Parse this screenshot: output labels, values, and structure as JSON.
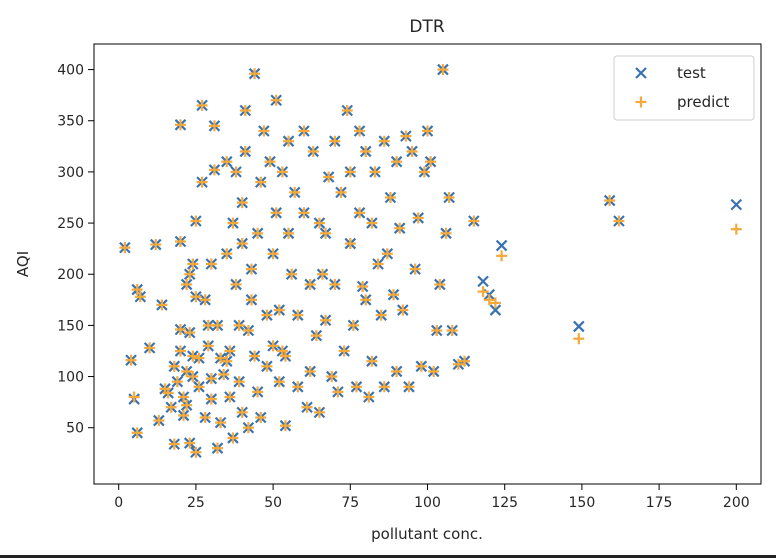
{
  "chart_data": {
    "type": "scatter",
    "title": "DTR",
    "xlabel": "pollutant conc.",
    "ylabel": "AQI",
    "xlim": [
      -8,
      208
    ],
    "ylim": [
      -5,
      425
    ],
    "xticks": [
      0,
      25,
      50,
      75,
      100,
      125,
      150,
      175,
      200
    ],
    "yticks": [
      50,
      100,
      150,
      200,
      250,
      300,
      350,
      400
    ],
    "grid": false,
    "legend_position": "top-right",
    "series": [
      {
        "name": "test",
        "marker": "x",
        "color": "#3a72b0",
        "points": [
          [
            2,
            226
          ],
          [
            4,
            116
          ],
          [
            5,
            78
          ],
          [
            6,
            45
          ],
          [
            6,
            185
          ],
          [
            7,
            178
          ],
          [
            10,
            128
          ],
          [
            12,
            229
          ],
          [
            13,
            57
          ],
          [
            14,
            170
          ],
          [
            15,
            88
          ],
          [
            16,
            84
          ],
          [
            17,
            70
          ],
          [
            18,
            34
          ],
          [
            18,
            110
          ],
          [
            19,
            95
          ],
          [
            20,
            125
          ],
          [
            20,
            146
          ],
          [
            20,
            346
          ],
          [
            20,
            232
          ],
          [
            21,
            80
          ],
          [
            21,
            62
          ],
          [
            22,
            190
          ],
          [
            22,
            105
          ],
          [
            22,
            72
          ],
          [
            23,
            35
          ],
          [
            23,
            200
          ],
          [
            23,
            143
          ],
          [
            24,
            120
          ],
          [
            24,
            100
          ],
          [
            24,
            210
          ],
          [
            25,
            26
          ],
          [
            25,
            178
          ],
          [
            25,
            252
          ],
          [
            26,
            90
          ],
          [
            26,
            118
          ],
          [
            27,
            365
          ],
          [
            27,
            290
          ],
          [
            28,
            60
          ],
          [
            28,
            175
          ],
          [
            29,
            130
          ],
          [
            29,
            150
          ],
          [
            30,
            78
          ],
          [
            30,
            98
          ],
          [
            30,
            210
          ],
          [
            31,
            345
          ],
          [
            31,
            302
          ],
          [
            32,
            30
          ],
          [
            32,
            150
          ],
          [
            33,
            118
          ],
          [
            33,
            55
          ],
          [
            34,
            102
          ],
          [
            35,
            115
          ],
          [
            35,
            220
          ],
          [
            35,
            310
          ],
          [
            36,
            80
          ],
          [
            36,
            125
          ],
          [
            37,
            250
          ],
          [
            37,
            40
          ],
          [
            38,
            190
          ],
          [
            38,
            300
          ],
          [
            39,
            150
          ],
          [
            39,
            95
          ],
          [
            40,
            65
          ],
          [
            40,
            270
          ],
          [
            40,
            230
          ],
          [
            41,
            360
          ],
          [
            41,
            320
          ],
          [
            42,
            145
          ],
          [
            42,
            50
          ],
          [
            43,
            175
          ],
          [
            43,
            205
          ],
          [
            44,
            396
          ],
          [
            44,
            120
          ],
          [
            45,
            240
          ],
          [
            45,
            85
          ],
          [
            46,
            290
          ],
          [
            46,
            60
          ],
          [
            47,
            340
          ],
          [
            48,
            160
          ],
          [
            48,
            110
          ],
          [
            49,
            310
          ],
          [
            50,
            220
          ],
          [
            50,
            130
          ],
          [
            51,
            370
          ],
          [
            51,
            260
          ],
          [
            52,
            95
          ],
          [
            52,
            165
          ],
          [
            53,
            300
          ],
          [
            53,
            125
          ],
          [
            54,
            120
          ],
          [
            54,
            52
          ],
          [
            55,
            240
          ],
          [
            55,
            330
          ],
          [
            56,
            200
          ],
          [
            57,
            280
          ],
          [
            58,
            160
          ],
          [
            58,
            90
          ],
          [
            60,
            340
          ],
          [
            60,
            260
          ],
          [
            61,
            70
          ],
          [
            62,
            190
          ],
          [
            62,
            105
          ],
          [
            63,
            320
          ],
          [
            64,
            140
          ],
          [
            65,
            250
          ],
          [
            65,
            65
          ],
          [
            66,
            200
          ],
          [
            67,
            155
          ],
          [
            67,
            240
          ],
          [
            68,
            295
          ],
          [
            69,
            100
          ],
          [
            70,
            330
          ],
          [
            70,
            190
          ],
          [
            71,
            85
          ],
          [
            72,
            280
          ],
          [
            73,
            125
          ],
          [
            74,
            360
          ],
          [
            75,
            300
          ],
          [
            75,
            230
          ],
          [
            76,
            150
          ],
          [
            77,
            90
          ],
          [
            78,
            340
          ],
          [
            78,
            260
          ],
          [
            79,
            188
          ],
          [
            80,
            320
          ],
          [
            80,
            175
          ],
          [
            81,
            80
          ],
          [
            82,
            250
          ],
          [
            82,
            115
          ],
          [
            83,
            300
          ],
          [
            84,
            210
          ],
          [
            85,
            160
          ],
          [
            86,
            330
          ],
          [
            86,
            90
          ],
          [
            87,
            220
          ],
          [
            88,
            275
          ],
          [
            89,
            180
          ],
          [
            90,
            310
          ],
          [
            90,
            105
          ],
          [
            91,
            245
          ],
          [
            92,
            165
          ],
          [
            93,
            335
          ],
          [
            94,
            90
          ],
          [
            95,
            320
          ],
          [
            96,
            205
          ],
          [
            97,
            255
          ],
          [
            98,
            110
          ],
          [
            99,
            300
          ],
          [
            100,
            340
          ],
          [
            101,
            310
          ],
          [
            102,
            105
          ],
          [
            103,
            145
          ],
          [
            104,
            190
          ],
          [
            105,
            400
          ],
          [
            106,
            240
          ],
          [
            107,
            275
          ],
          [
            108,
            145
          ],
          [
            110,
            112
          ],
          [
            112,
            115
          ],
          [
            115,
            252
          ],
          [
            118,
            193
          ],
          [
            120,
            180
          ],
          [
            122,
            165
          ],
          [
            124,
            228
          ],
          [
            149,
            149
          ],
          [
            159,
            272
          ],
          [
            162,
            252
          ],
          [
            200,
            268
          ]
        ]
      },
      {
        "name": "predict",
        "marker": "+",
        "color": "#f5a93a",
        "points": [
          [
            2,
            226
          ],
          [
            4,
            116
          ],
          [
            5,
            80
          ],
          [
            6,
            45
          ],
          [
            6,
            185
          ],
          [
            7,
            178
          ],
          [
            10,
            128
          ],
          [
            12,
            229
          ],
          [
            13,
            57
          ],
          [
            14,
            170
          ],
          [
            15,
            88
          ],
          [
            16,
            84
          ],
          [
            17,
            70
          ],
          [
            18,
            34
          ],
          [
            18,
            110
          ],
          [
            19,
            95
          ],
          [
            20,
            125
          ],
          [
            20,
            146
          ],
          [
            20,
            346
          ],
          [
            20,
            232
          ],
          [
            21,
            80
          ],
          [
            21,
            62
          ],
          [
            22,
            190
          ],
          [
            22,
            105
          ],
          [
            22,
            72
          ],
          [
            23,
            35
          ],
          [
            23,
            200
          ],
          [
            23,
            143
          ],
          [
            24,
            120
          ],
          [
            24,
            100
          ],
          [
            24,
            210
          ],
          [
            25,
            26
          ],
          [
            25,
            178
          ],
          [
            25,
            252
          ],
          [
            26,
            90
          ],
          [
            26,
            118
          ],
          [
            27,
            365
          ],
          [
            27,
            290
          ],
          [
            28,
            60
          ],
          [
            28,
            175
          ],
          [
            29,
            130
          ],
          [
            29,
            150
          ],
          [
            30,
            78
          ],
          [
            30,
            98
          ],
          [
            30,
            210
          ],
          [
            31,
            345
          ],
          [
            31,
            302
          ],
          [
            32,
            30
          ],
          [
            32,
            150
          ],
          [
            33,
            118
          ],
          [
            33,
            55
          ],
          [
            34,
            102
          ],
          [
            35,
            115
          ],
          [
            35,
            220
          ],
          [
            35,
            310
          ],
          [
            36,
            80
          ],
          [
            36,
            125
          ],
          [
            37,
            250
          ],
          [
            37,
            40
          ],
          [
            38,
            190
          ],
          [
            38,
            300
          ],
          [
            39,
            150
          ],
          [
            39,
            95
          ],
          [
            40,
            65
          ],
          [
            40,
            270
          ],
          [
            40,
            230
          ],
          [
            41,
            360
          ],
          [
            41,
            320
          ],
          [
            42,
            145
          ],
          [
            42,
            50
          ],
          [
            43,
            175
          ],
          [
            43,
            205
          ],
          [
            44,
            396
          ],
          [
            44,
            120
          ],
          [
            45,
            240
          ],
          [
            45,
            85
          ],
          [
            46,
            290
          ],
          [
            46,
            60
          ],
          [
            47,
            340
          ],
          [
            48,
            160
          ],
          [
            48,
            110
          ],
          [
            49,
            310
          ],
          [
            50,
            220
          ],
          [
            50,
            130
          ],
          [
            51,
            370
          ],
          [
            51,
            260
          ],
          [
            52,
            95
          ],
          [
            52,
            165
          ],
          [
            53,
            300
          ],
          [
            53,
            125
          ],
          [
            54,
            120
          ],
          [
            54,
            52
          ],
          [
            55,
            240
          ],
          [
            55,
            330
          ],
          [
            56,
            200
          ],
          [
            57,
            280
          ],
          [
            58,
            160
          ],
          [
            58,
            90
          ],
          [
            60,
            340
          ],
          [
            60,
            260
          ],
          [
            61,
            70
          ],
          [
            62,
            190
          ],
          [
            62,
            105
          ],
          [
            63,
            320
          ],
          [
            64,
            140
          ],
          [
            65,
            250
          ],
          [
            65,
            65
          ],
          [
            66,
            200
          ],
          [
            67,
            155
          ],
          [
            67,
            240
          ],
          [
            68,
            295
          ],
          [
            69,
            100
          ],
          [
            70,
            330
          ],
          [
            70,
            190
          ],
          [
            71,
            85
          ],
          [
            72,
            280
          ],
          [
            73,
            125
          ],
          [
            74,
            360
          ],
          [
            75,
            300
          ],
          [
            75,
            230
          ],
          [
            76,
            150
          ],
          [
            77,
            90
          ],
          [
            78,
            340
          ],
          [
            78,
            260
          ],
          [
            79,
            188
          ],
          [
            80,
            320
          ],
          [
            80,
            175
          ],
          [
            81,
            80
          ],
          [
            82,
            250
          ],
          [
            82,
            115
          ],
          [
            83,
            300
          ],
          [
            84,
            210
          ],
          [
            85,
            160
          ],
          [
            86,
            330
          ],
          [
            86,
            90
          ],
          [
            87,
            220
          ],
          [
            88,
            275
          ],
          [
            89,
            180
          ],
          [
            90,
            310
          ],
          [
            90,
            105
          ],
          [
            91,
            245
          ],
          [
            92,
            165
          ],
          [
            93,
            335
          ],
          [
            94,
            90
          ],
          [
            95,
            320
          ],
          [
            96,
            205
          ],
          [
            97,
            255
          ],
          [
            98,
            110
          ],
          [
            99,
            300
          ],
          [
            100,
            340
          ],
          [
            101,
            310
          ],
          [
            102,
            105
          ],
          [
            103,
            145
          ],
          [
            104,
            190
          ],
          [
            105,
            400
          ],
          [
            106,
            240
          ],
          [
            107,
            275
          ],
          [
            108,
            145
          ],
          [
            110,
            112
          ],
          [
            112,
            115
          ],
          [
            115,
            252
          ],
          [
            118,
            183
          ],
          [
            120,
            175
          ],
          [
            122,
            172
          ],
          [
            124,
            218
          ],
          [
            149,
            137
          ],
          [
            159,
            272
          ],
          [
            162,
            252
          ],
          [
            200,
            244
          ]
        ]
      }
    ]
  }
}
